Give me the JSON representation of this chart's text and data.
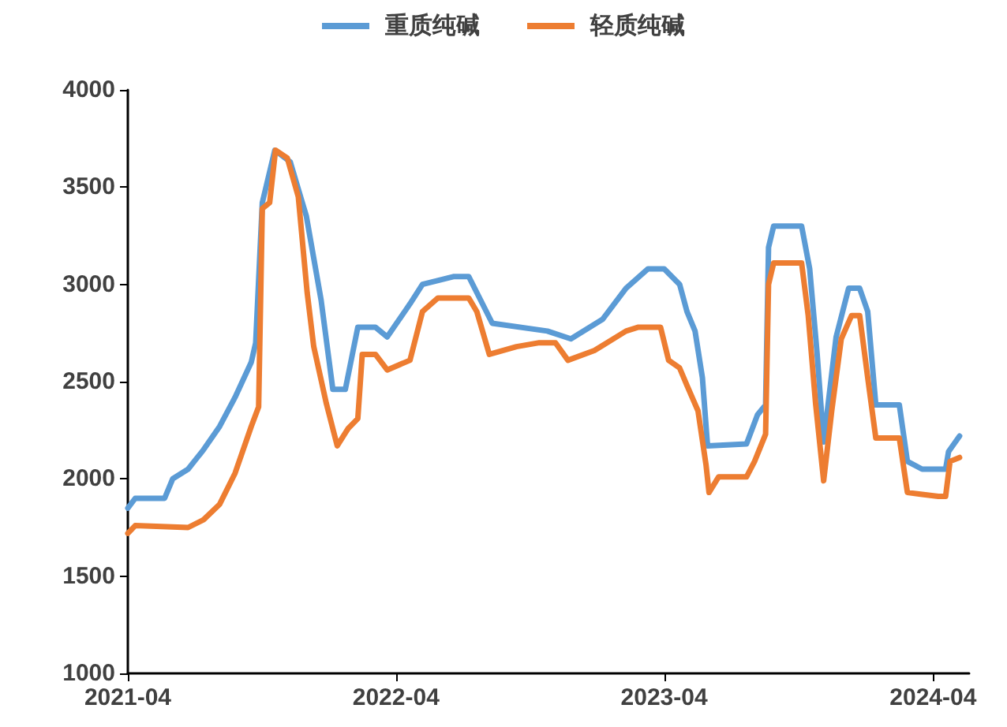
{
  "chart_data": {
    "type": "line",
    "xlim": [
      "2021-04-01",
      "2024-05-20"
    ],
    "xticks": [
      "2021-04",
      "2022-04",
      "2023-04",
      "2024-04"
    ],
    "ylim": [
      1000,
      4000
    ],
    "yticks": [
      1000,
      1500,
      2000,
      2500,
      3000,
      3500,
      4000
    ],
    "grid": false,
    "legend": "top",
    "marker": "none",
    "line_style": "solid",
    "series": [
      {
        "name": "重质纯碱",
        "color": "#5b9bd5",
        "x": [
          "2021-04-01",
          "2021-04-11",
          "2021-05-21",
          "2021-06-01",
          "2021-06-22",
          "2021-07-13",
          "2021-08-04",
          "2021-08-25",
          "2021-09-16",
          "2021-09-22",
          "2021-10-01",
          "2021-10-18",
          "2021-11-08",
          "2021-11-30",
          "2021-12-20",
          "2022-01-05",
          "2022-01-22",
          "2022-02-08",
          "2022-03-04",
          "2022-03-20",
          "2022-04-20",
          "2022-05-07",
          "2022-06-18",
          "2022-07-09",
          "2022-08-10",
          "2022-10-24",
          "2022-11-25",
          "2023-01-07",
          "2023-02-08",
          "2023-03-10",
          "2023-04-01",
          "2023-04-22",
          "2023-05-02",
          "2023-05-13",
          "2023-05-23",
          "2023-05-30",
          "2023-07-22",
          "2023-08-06",
          "2023-08-17",
          "2023-08-21",
          "2023-08-28",
          "2023-10-05",
          "2023-10-16",
          "2023-10-26",
          "2023-11-04",
          "2023-11-21",
          "2023-12-08",
          "2023-12-23",
          "2024-01-03",
          "2024-01-14",
          "2024-02-15",
          "2024-02-26",
          "2024-03-17",
          "2024-04-18",
          "2024-04-22",
          "2024-05-07"
        ],
        "values": [
          1850,
          1900,
          1900,
          2000,
          2050,
          2150,
          2270,
          2420,
          2600,
          2700,
          3420,
          3690,
          3630,
          3350,
          2920,
          2460,
          2460,
          2780,
          2780,
          2730,
          2900,
          3000,
          3040,
          3040,
          2800,
          2760,
          2720,
          2820,
          2980,
          3080,
          3080,
          3000,
          2860,
          2760,
          2520,
          2170,
          2180,
          2330,
          2380,
          3190,
          3300,
          3300,
          3080,
          2650,
          2190,
          2730,
          2980,
          2980,
          2860,
          2380,
          2380,
          2090,
          2050,
          2050,
          2140,
          2220
        ]
      },
      {
        "name": "轻质纯碱",
        "color": "#ed7d31",
        "x": [
          "2021-04-01",
          "2021-04-11",
          "2021-06-22",
          "2021-07-13",
          "2021-08-04",
          "2021-08-25",
          "2021-09-16",
          "2021-09-26",
          "2021-10-01",
          "2021-10-11",
          "2021-10-19",
          "2021-11-04",
          "2021-11-19",
          "2021-12-01",
          "2021-12-10",
          "2021-12-27",
          "2022-01-11",
          "2022-01-26",
          "2022-02-08",
          "2022-02-14",
          "2022-03-04",
          "2022-03-20",
          "2022-04-20",
          "2022-05-07",
          "2022-05-28",
          "2022-07-09",
          "2022-07-20",
          "2022-08-06",
          "2022-09-12",
          "2022-10-13",
          "2022-11-04",
          "2022-11-21",
          "2022-12-27",
          "2023-02-08",
          "2023-02-25",
          "2023-03-27",
          "2023-04-07",
          "2023-04-22",
          "2023-05-02",
          "2023-05-17",
          "2023-05-28",
          "2023-06-01",
          "2023-06-14",
          "2023-07-22",
          "2023-08-02",
          "2023-08-17",
          "2023-08-21",
          "2023-08-28",
          "2023-10-05",
          "2023-10-14",
          "2023-10-24",
          "2023-11-04",
          "2023-11-15",
          "2023-11-28",
          "2023-12-12",
          "2023-12-23",
          "2024-01-03",
          "2024-01-14",
          "2024-02-15",
          "2024-02-26",
          "2024-03-17",
          "2024-04-08",
          "2024-04-18",
          "2024-04-24",
          "2024-05-07"
        ],
        "values": [
          1720,
          1760,
          1750,
          1790,
          1870,
          2030,
          2270,
          2370,
          3390,
          3420,
          3690,
          3650,
          3450,
          2960,
          2680,
          2390,
          2170,
          2260,
          2310,
          2640,
          2640,
          2560,
          2610,
          2860,
          2930,
          2930,
          2860,
          2640,
          2680,
          2700,
          2700,
          2610,
          2660,
          2760,
          2780,
          2780,
          2610,
          2570,
          2480,
          2350,
          2070,
          1930,
          2010,
          2010,
          2090,
          2230,
          3000,
          3110,
          3110,
          2840,
          2390,
          1990,
          2350,
          2720,
          2840,
          2840,
          2520,
          2210,
          2210,
          1930,
          1920,
          1910,
          1910,
          2090,
          2110
        ]
      }
    ]
  }
}
